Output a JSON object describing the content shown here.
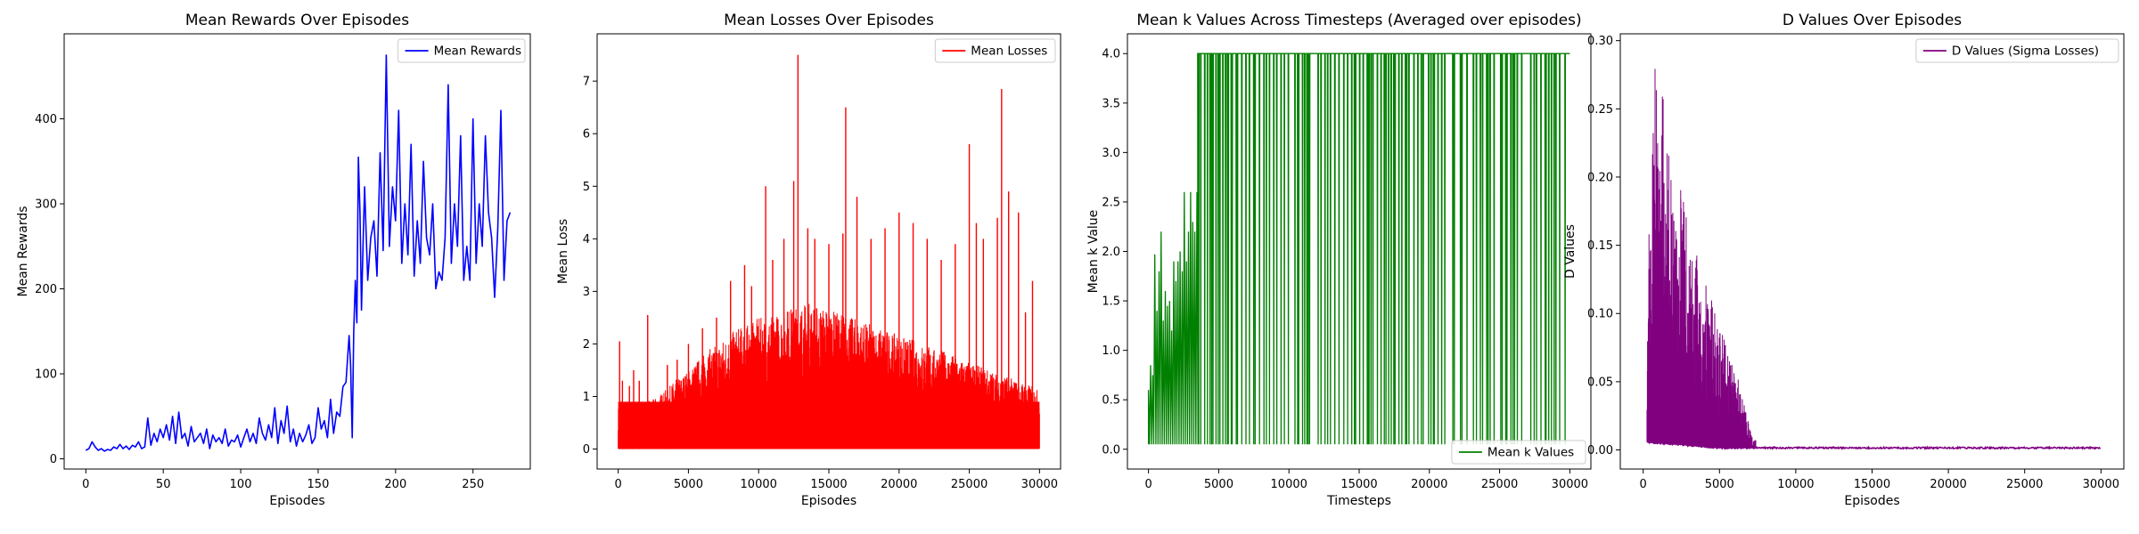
{
  "chart_data": [
    {
      "type": "line",
      "title": "Mean Rewards Over Episodes",
      "xlabel": "Episodes",
      "ylabel": "Mean Rewards",
      "xlim": [
        -14,
        287
      ],
      "ylim": [
        -12,
        500
      ],
      "xticks": [
        0,
        50,
        100,
        150,
        200,
        250
      ],
      "yticks": [
        0,
        100,
        200,
        300,
        400
      ],
      "legend": "top-right",
      "grid": false,
      "series": [
        {
          "name": "Mean Rewards",
          "color": "#0000ff",
          "x": [
            0,
            2,
            4,
            6,
            8,
            10,
            12,
            14,
            16,
            18,
            20,
            22,
            24,
            26,
            28,
            30,
            32,
            34,
            36,
            38,
            40,
            42,
            44,
            46,
            48,
            50,
            52,
            54,
            56,
            58,
            60,
            62,
            64,
            66,
            68,
            70,
            72,
            74,
            76,
            78,
            80,
            82,
            84,
            86,
            88,
            90,
            92,
            94,
            96,
            98,
            100,
            102,
            104,
            106,
            108,
            110,
            112,
            114,
            116,
            118,
            120,
            122,
            124,
            126,
            128,
            130,
            132,
            134,
            136,
            138,
            140,
            142,
            144,
            146,
            148,
            150,
            152,
            154,
            156,
            158,
            160,
            162,
            164,
            166,
            168,
            170,
            171,
            172,
            173,
            174,
            175,
            176,
            177,
            178,
            179,
            180,
            182,
            184,
            186,
            188,
            190,
            192,
            194,
            196,
            198,
            200,
            202,
            204,
            206,
            208,
            210,
            212,
            214,
            216,
            218,
            220,
            222,
            224,
            226,
            228,
            230,
            232,
            234,
            236,
            238,
            240,
            242,
            244,
            246,
            248,
            250,
            252,
            254,
            256,
            258,
            260,
            262,
            264,
            266,
            268,
            270,
            272,
            274
          ],
          "values": [
            10,
            12,
            20,
            14,
            10,
            12,
            9,
            11,
            10,
            14,
            12,
            17,
            12,
            15,
            11,
            16,
            14,
            20,
            12,
            14,
            48,
            16,
            30,
            20,
            35,
            25,
            40,
            22,
            50,
            18,
            55,
            24,
            30,
            15,
            38,
            20,
            25,
            30,
            18,
            35,
            12,
            28,
            20,
            25,
            18,
            35,
            15,
            22,
            20,
            28,
            14,
            25,
            35,
            20,
            30,
            18,
            48,
            30,
            22,
            40,
            25,
            60,
            18,
            45,
            30,
            62,
            20,
            35,
            15,
            30,
            20,
            28,
            40,
            18,
            25,
            60,
            35,
            45,
            25,
            70,
            30,
            55,
            50,
            85,
            90,
            145,
            110,
            25,
            150,
            210,
            160,
            355,
            290,
            175,
            250,
            320,
            210,
            260,
            280,
            215,
            360,
            245,
            475,
            250,
            320,
            280,
            410,
            230,
            300,
            240,
            370,
            215,
            280,
            230,
            350,
            260,
            240,
            300,
            200,
            220,
            210,
            260,
            440,
            230,
            300,
            250,
            380,
            210,
            250,
            210,
            400,
            230,
            300,
            250,
            380,
            290,
            260,
            190,
            270,
            410,
            210,
            280,
            290
          ]
        }
      ]
    },
    {
      "type": "line",
      "title": "Mean Losses Over Episodes",
      "xlabel": "Episodes",
      "ylabel": "Mean Loss",
      "xlim": [
        -1500,
        31500
      ],
      "ylim": [
        -0.38,
        7.9
      ],
      "xticks": [
        0,
        5000,
        10000,
        15000,
        20000,
        25000,
        30000
      ],
      "yticks": [
        0,
        1,
        2,
        3,
        4,
        5,
        6,
        7
      ],
      "legend": "top-right",
      "grid": false,
      "envelope_step": 500,
      "envelope_top": [
        0.8,
        0.75,
        0.8,
        0.85,
        0.9,
        0.95,
        1.05,
        1.15,
        1.3,
        1.4,
        1.5,
        1.65,
        1.8,
        1.9,
        2.0,
        2.1,
        2.2,
        2.3,
        2.35,
        2.4,
        2.5,
        2.5,
        2.55,
        2.6,
        2.7,
        2.7,
        2.75,
        2.8,
        2.75,
        2.7,
        2.7,
        2.6,
        2.6,
        2.5,
        2.5,
        2.4,
        2.4,
        2.3,
        2.3,
        2.2,
        2.2,
        2.1,
        2.1,
        2.0,
        2.0,
        1.9,
        1.9,
        1.8,
        1.8,
        1.7,
        1.65,
        1.6,
        1.55,
        1.5,
        1.45,
        1.4,
        1.35,
        1.3,
        1.25,
        1.2,
        1.1
      ],
      "spikes_x": [
        100,
        300,
        800,
        1100,
        1500,
        2100,
        3500,
        4200,
        5000,
        6000,
        7000,
        8000,
        9000,
        9500,
        10500,
        11000,
        11800,
        12500,
        12800,
        13500,
        14000,
        15000,
        16000,
        16200,
        17000,
        18000,
        19000,
        20000,
        21000,
        22000,
        23000,
        24000,
        25000,
        25500,
        26000,
        27000,
        27300,
        27800,
        28500,
        29000,
        29500
      ],
      "spikes_y": [
        2.05,
        1.3,
        1.2,
        1.5,
        1.3,
        2.55,
        1.6,
        1.7,
        2.0,
        2.3,
        2.5,
        3.2,
        3.5,
        3.1,
        5.0,
        3.6,
        4.0,
        5.1,
        7.5,
        4.2,
        4.0,
        3.9,
        4.1,
        6.5,
        4.8,
        4.0,
        4.2,
        4.5,
        4.3,
        4.0,
        3.6,
        3.9,
        5.8,
        4.3,
        4.0,
        4.4,
        6.85,
        4.9,
        4.5,
        2.6,
        3.2
      ],
      "series": [
        {
          "name": "Mean Losses",
          "color": "#ff0000"
        }
      ]
    },
    {
      "type": "line",
      "title": "Mean k Values Across Timesteps (Averaged over episodes)",
      "xlabel": "Timesteps",
      "ylabel": "Mean k Value",
      "xlim": [
        -1500,
        31500
      ],
      "ylim": [
        -0.2,
        4.2
      ],
      "xticks": [
        0,
        5000,
        10000,
        15000,
        20000,
        25000,
        30000
      ],
      "yticks": [
        0.0,
        0.5,
        1.0,
        1.5,
        2.0,
        2.5,
        3.0,
        3.5,
        4.0
      ],
      "legend": "bottom-right",
      "grid": false,
      "low_value": 0.05,
      "high_value": 4.0,
      "saturation_x": 3500,
      "early_x": [
        0,
        150,
        300,
        450,
        600,
        750,
        900,
        1050,
        1200,
        1350,
        1500,
        1650,
        1800,
        1950,
        2100,
        2250,
        2400,
        2550,
        2700,
        2850,
        3000,
        3150,
        3300,
        3450
      ],
      "early_peaks": [
        0.6,
        0.85,
        0.75,
        1.97,
        1.4,
        1.8,
        2.2,
        1.3,
        1.6,
        1.45,
        1.5,
        1.2,
        1.9,
        1.7,
        1.9,
        2.0,
        1.8,
        2.6,
        1.9,
        2.2,
        2.6,
        2.3,
        2.2,
        2.6
      ],
      "series": [
        {
          "name": "Mean k Values",
          "color": "#008000"
        }
      ]
    },
    {
      "type": "line",
      "title": "D Values Over Episodes",
      "xlabel": "Episodes",
      "ylabel": "D Values",
      "xlim": [
        -1500,
        31500
      ],
      "ylim": [
        -0.014,
        0.305
      ],
      "xticks": [
        0,
        5000,
        10000,
        15000,
        20000,
        25000,
        30000
      ],
      "yticks": [
        0.0,
        0.05,
        0.1,
        0.15,
        0.2,
        0.25,
        0.3
      ],
      "legend": "top-right",
      "grid": false,
      "envelope_step": 250,
      "envelope_top": [
        0.0,
        0.145,
        0.19,
        0.29,
        0.24,
        0.27,
        0.23,
        0.21,
        0.17,
        0.16,
        0.2,
        0.18,
        0.15,
        0.14,
        0.15,
        0.12,
        0.13,
        0.11,
        0.12,
        0.1,
        0.09,
        0.085,
        0.07,
        0.065,
        0.06,
        0.055,
        0.04,
        0.03,
        0.015,
        0.008,
        0.006
      ],
      "baseline_start": 0.006,
      "baseline_end": 0.0015,
      "baseline_taper_x": 5000,
      "series": [
        {
          "name": "D Values (Sigma Losses)",
          "color": "#800080"
        }
      ]
    }
  ]
}
